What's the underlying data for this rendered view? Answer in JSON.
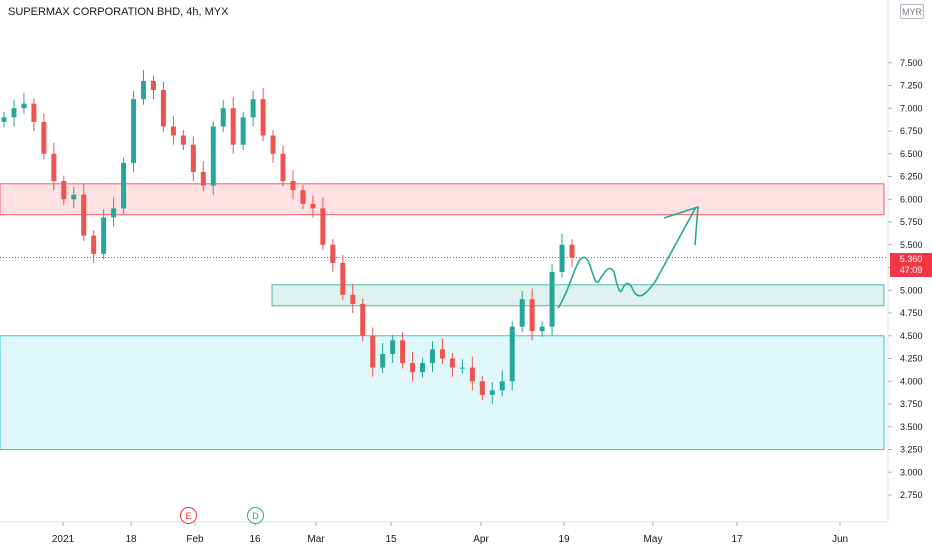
{
  "header": {
    "title": "SUPERMAX CORPORATION BHD, 4h, MYX",
    "currency": "MYR"
  },
  "price_tag": {
    "price": "5.360",
    "countdown": "47:09"
  },
  "events": [
    {
      "label": "E",
      "color": "#f23645"
    },
    {
      "label": "D",
      "color": "#22ab94"
    }
  ],
  "colors": {
    "up": "#26a69a",
    "down": "#ef5350",
    "drawing": "#22ab94",
    "last_price_line": "#f23645"
  },
  "chart_data": {
    "type": "candlestick",
    "ylim": [
      2.75,
      7.75
    ],
    "y_ticks": [
      "7.500",
      "7.250",
      "7.000",
      "6.750",
      "6.500",
      "6.250",
      "6.000",
      "5.750",
      "5.500",
      "5.250",
      "5.000",
      "4.750",
      "4.500",
      "4.250",
      "4.000",
      "3.750",
      "3.500",
      "3.250",
      "3.000",
      "2.750"
    ],
    "x_ticks": [
      "2021",
      "18",
      "Feb",
      "16",
      "Mar",
      "15",
      "Apr",
      "19",
      "May",
      "17",
      "Jun"
    ],
    "last_price": 5.36,
    "zones": [
      {
        "name": "resistance",
        "from": 5.83,
        "to": 6.17,
        "color": "#f23645"
      },
      {
        "name": "support",
        "from": 4.83,
        "to": 5.06,
        "color": "#22ab94"
      },
      {
        "name": "demand",
        "from": 3.25,
        "to": 4.5,
        "color": "#00bcd4"
      }
    ],
    "closes": [
      6.9,
      7.0,
      7.05,
      6.85,
      6.5,
      6.2,
      6.0,
      6.05,
      5.6,
      5.4,
      5.8,
      5.9,
      6.4,
      7.1,
      7.3,
      7.2,
      6.8,
      6.7,
      6.6,
      6.3,
      6.15,
      6.8,
      7.0,
      6.6,
      6.9,
      7.1,
      6.7,
      6.5,
      6.2,
      6.1,
      5.95,
      5.9,
      5.5,
      5.3,
      4.95,
      4.85,
      4.5,
      4.15,
      4.3,
      4.45,
      4.2,
      4.1,
      4.2,
      4.35,
      4.25,
      4.15,
      4.15,
      4.0,
      3.85,
      3.9,
      4.0,
      4.6,
      4.9,
      4.55,
      4.6,
      5.2,
      5.5,
      5.36
    ]
  }
}
